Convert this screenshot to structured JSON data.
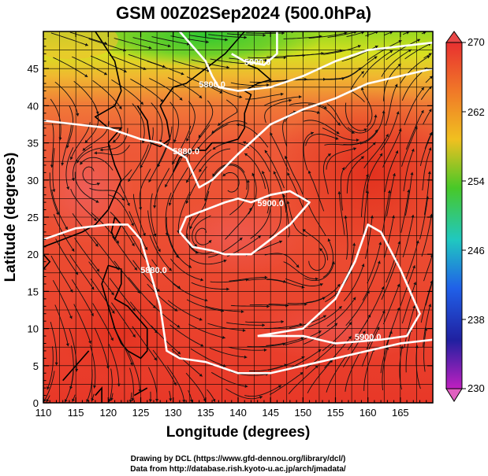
{
  "title": "GSM 00Z02Sep2024 (500.0hPa)",
  "xlabel": "Longitude (degrees)",
  "ylabel": "Latitude  (degrees)",
  "x_ticks": [
    "110",
    "115",
    "120",
    "125",
    "130",
    "135",
    "140",
    "145",
    "150",
    "155",
    "160",
    "165"
  ],
  "y_ticks": [
    "0",
    "5",
    "10",
    "15",
    "20",
    "25",
    "30",
    "35",
    "40",
    "45"
  ],
  "colorbar": {
    "labels": [
      "270",
      "262",
      "254",
      "246",
      "238",
      "230"
    ],
    "colors": [
      "#e83030",
      "#f07828",
      "#f0c020",
      "#48c828",
      "#20c8c0",
      "#2060e8",
      "#2020a0",
      "#c020c0"
    ]
  },
  "contour_labels": [
    {
      "text": "5900.0",
      "lon": 143,
      "lat": 45.5
    },
    {
      "text": "5800.0",
      "lon": 136,
      "lat": 42.5
    },
    {
      "text": "5880.0",
      "lon": 132,
      "lat": 33.5
    },
    {
      "text": "5900.0",
      "lon": 145,
      "lat": 26.5
    },
    {
      "text": "5880.0",
      "lon": 127,
      "lat": 17.5
    },
    {
      "text": "5900.0",
      "lon": 160,
      "lat": 8.5
    }
  ],
  "credits": {
    "line1": "Drawing by DCL (https://www.gfd-dennou.org/library/dcl/)",
    "line2": "Data from http://database.rish.kyoto-u.ac.jp/arch/jmadata/"
  },
  "chart_data": {
    "type": "map",
    "variable": "temperature (colour) with 500 hPa height contours and wind streamlines",
    "xlim": [
      110,
      170
    ],
    "ylim": [
      0,
      50
    ],
    "colorbar_range": [
      230,
      270
    ],
    "contours": [
      {
        "value": 5800,
        "label": "5800.0",
        "points": [
          [
            131,
            50
          ],
          [
            133,
            48
          ],
          [
            135,
            46
          ],
          [
            136,
            44
          ],
          [
            137,
            42.5
          ],
          [
            140,
            42
          ],
          [
            145,
            42.5
          ],
          [
            150,
            44
          ],
          [
            155,
            46
          ],
          [
            160,
            47.5
          ],
          [
            165,
            48
          ],
          [
            170,
            48.5
          ]
        ]
      },
      {
        "value": 5880,
        "label": "5880.0",
        "points": [
          [
            110,
            38
          ],
          [
            115,
            37.5
          ],
          [
            120,
            37
          ],
          [
            125,
            35.5
          ],
          [
            128,
            35
          ],
          [
            130,
            34
          ],
          [
            132,
            33
          ],
          [
            133,
            31
          ],
          [
            134,
            29
          ],
          [
            136,
            30
          ],
          [
            140,
            33.5
          ],
          [
            145,
            37.5
          ],
          [
            150,
            39.5
          ],
          [
            155,
            41
          ],
          [
            160,
            43
          ],
          [
            165,
            44
          ],
          [
            170,
            45
          ]
        ]
      },
      {
        "value": 5880,
        "label": "5880.0",
        "points": [
          [
            110,
            22
          ],
          [
            115,
            23.5
          ],
          [
            120,
            24
          ],
          [
            123,
            24
          ],
          [
            125,
            22
          ],
          [
            126,
            19
          ],
          [
            127,
            16
          ],
          [
            128,
            13
          ],
          [
            128.5,
            10
          ],
          [
            129,
            7
          ],
          [
            131,
            6
          ],
          [
            135,
            5.5
          ],
          [
            140,
            4
          ],
          [
            145,
            4
          ],
          [
            150,
            5
          ],
          [
            155,
            6
          ],
          [
            160,
            7
          ],
          [
            165,
            8
          ],
          [
            170,
            8.5
          ]
        ]
      },
      {
        "value": 5900,
        "label": "5900.0",
        "points": [
          [
            131,
            23
          ],
          [
            132,
            25
          ],
          [
            135,
            26
          ],
          [
            138,
            27
          ],
          [
            140,
            27.5
          ],
          [
            142,
            27
          ],
          [
            145,
            28
          ],
          [
            148,
            28.5
          ],
          [
            151,
            27
          ],
          [
            148,
            24
          ],
          [
            145,
            22
          ],
          [
            142,
            20
          ],
          [
            138,
            20
          ],
          [
            136,
            20.5
          ],
          [
            133,
            21
          ],
          [
            131,
            23
          ]
        ]
      },
      {
        "value": 5900,
        "label": "5900.0",
        "points": [
          [
            139,
            47
          ],
          [
            141,
            46
          ],
          [
            144,
            45.5
          ],
          [
            146,
            47
          ],
          [
            146,
            50
          ]
        ]
      },
      {
        "value": 5900,
        "label": "5900.0",
        "points": [
          [
            143,
            9
          ],
          [
            150,
            10
          ],
          [
            155,
            14
          ],
          [
            158,
            19
          ],
          [
            160,
            24
          ],
          [
            162,
            23
          ],
          [
            165,
            18
          ],
          [
            168,
            12
          ],
          [
            166,
            9
          ],
          [
            162,
            8.5
          ],
          [
            155,
            8
          ],
          [
            150,
            9
          ],
          [
            143,
            9
          ]
        ]
      }
    ],
    "vortex_centers": [
      {
        "lon": 116.5,
        "lat": 31
      },
      {
        "lon": 159.5,
        "lat": 38
      },
      {
        "lon": 134,
        "lat": 22
      },
      {
        "lon": 152.5,
        "lat": 18.5
      },
      {
        "lon": 139,
        "lat": 30
      }
    ],
    "grid_spacing_deg": 2.5
  }
}
